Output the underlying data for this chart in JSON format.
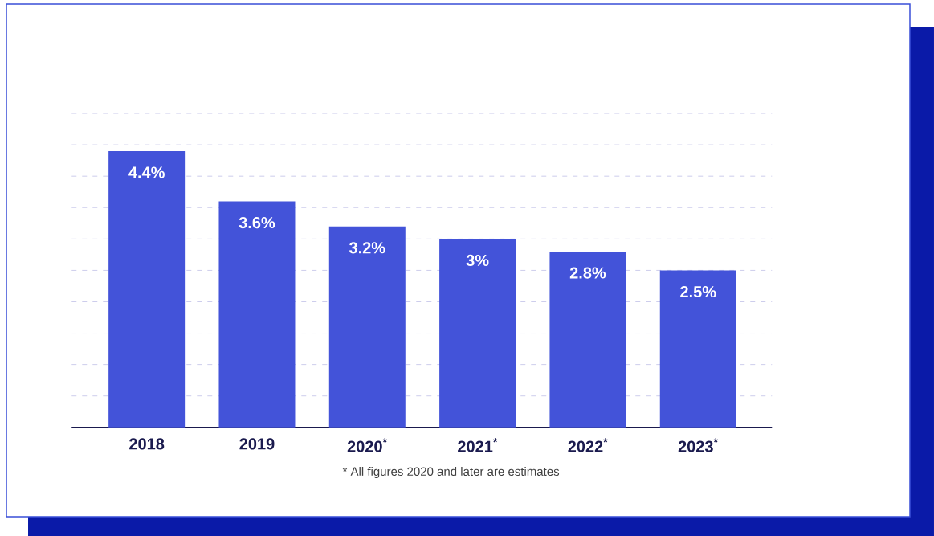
{
  "chart_data": {
    "type": "bar",
    "categories": [
      "2018",
      "2019",
      "2020$^{*}$",
      "2021$^{*}$",
      "2022$^{*}$",
      "2023$^{*}$"
    ],
    "values": [
      4.4,
      3.6,
      3.2,
      3,
      2.8,
      2.5
    ],
    "value_labels": [
      "4.4%",
      "3.6%",
      "3.2%",
      "3%",
      "2.8%",
      "2.5%"
    ],
    "color": "#4353d9",
    "grid": "y",
    "tick_labels": "x",
    "annotations": [
      "* All figures 2020 and later are estimates"
    ]
  }
}
